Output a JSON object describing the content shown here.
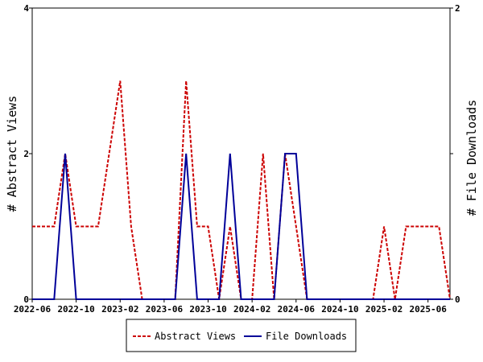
{
  "chart_data": {
    "type": "line",
    "x": [
      "2022-06",
      "2022-07",
      "2022-08",
      "2022-09",
      "2022-10",
      "2022-11",
      "2022-12",
      "2023-01",
      "2023-02",
      "2023-03",
      "2023-04",
      "2023-05",
      "2023-06",
      "2023-07",
      "2023-08",
      "2023-09",
      "2023-10",
      "2023-11",
      "2023-12",
      "2024-01",
      "2024-02",
      "2024-03",
      "2024-04",
      "2024-05",
      "2024-06",
      "2024-07",
      "2024-08",
      "2024-09",
      "2024-10",
      "2024-11",
      "2024-12",
      "2025-01",
      "2025-02",
      "2025-03",
      "2025-04",
      "2025-05",
      "2025-06",
      "2025-07",
      "2025-08"
    ],
    "x_ticks": [
      "2022-06",
      "2022-10",
      "2023-02",
      "2023-06",
      "2023-10",
      "2024-02",
      "2024-06",
      "2024-10",
      "2025-02",
      "2025-06"
    ],
    "series": [
      {
        "name": "Abstract Views",
        "axis": "left",
        "color": "#cc0000",
        "style": "dashed",
        "values": [
          1,
          1,
          1,
          2,
          1,
          1,
          1,
          2,
          3,
          1,
          0,
          0,
          0,
          0,
          3,
          1,
          1,
          0,
          1,
          0,
          0,
          2,
          0,
          2,
          1,
          0,
          0,
          0,
          0,
          0,
          0,
          0,
          1,
          0,
          1,
          1,
          1,
          1,
          0
        ]
      },
      {
        "name": "File Downloads",
        "axis": "right",
        "color": "#000099",
        "style": "solid",
        "values": [
          0,
          0,
          0,
          1,
          0,
          0,
          0,
          0,
          0,
          0,
          0,
          0,
          0,
          0,
          1,
          0,
          0,
          0,
          1,
          0,
          0,
          0,
          0,
          1,
          1,
          0,
          0,
          0,
          0,
          0,
          0,
          0,
          0,
          0,
          0,
          0,
          0,
          0,
          0
        ]
      }
    ],
    "ylabel_left": "# Abstract Views",
    "ylabel_right": "# File Downloads",
    "ylim_left": [
      0,
      4
    ],
    "ylim_right": [
      0,
      2
    ],
    "yticks_left": [
      "0",
      "2",
      "4"
    ],
    "yticks_right": [
      "0",
      "1",
      "2"
    ],
    "legend_position": "bottom-center",
    "grid": false
  }
}
